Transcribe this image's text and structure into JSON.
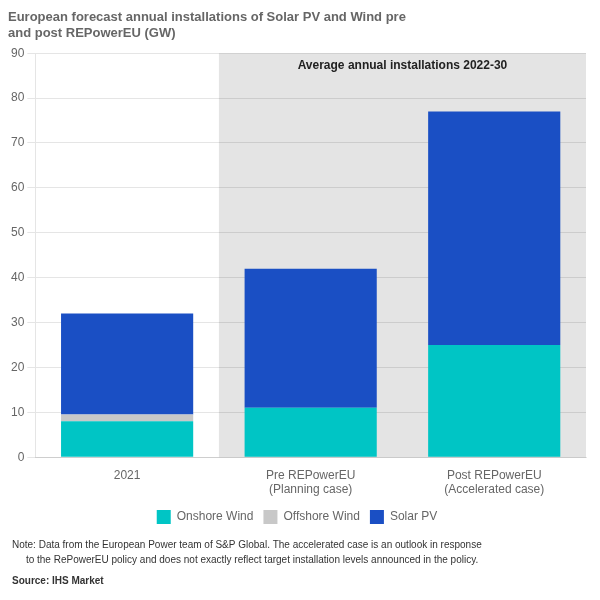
{
  "chart_data": {
    "type": "bar",
    "stacked": true,
    "title": "European forecast annual installations of Solar PV and Wind pre\nand post REPowerEU (GW)",
    "categories": [
      "2021",
      "Pre REPowerEU\n(Planning case)",
      "Post REPowerEU\n(Accelerated case)"
    ],
    "series": [
      {
        "name": "Onshore Wind",
        "color": "#00C5C5",
        "values": [
          8.0,
          11.0,
          25.0
        ]
      },
      {
        "name": "Offshore Wind",
        "color": "#C8C8C8",
        "values": [
          1.5,
          0.0,
          0.0
        ]
      },
      {
        "name": "Solar PV",
        "color": "#1A4FC4",
        "values": [
          22.5,
          31.0,
          52.0
        ]
      }
    ],
    "ylim": [
      0,
      90
    ],
    "yticks": [
      0,
      10,
      20,
      30,
      40,
      50,
      60,
      70,
      80,
      90
    ],
    "grid": true,
    "legend": "bottom",
    "annotations": [
      "Average annual installations 2022-30",
      "Note: Data from the European Power team of S&P Global. The accelerated case is an outlook in response",
      "     to the RePowerEU policy and does not exactly reflect target installation levels announced in the policy.",
      "Source: IHS Market"
    ]
  }
}
